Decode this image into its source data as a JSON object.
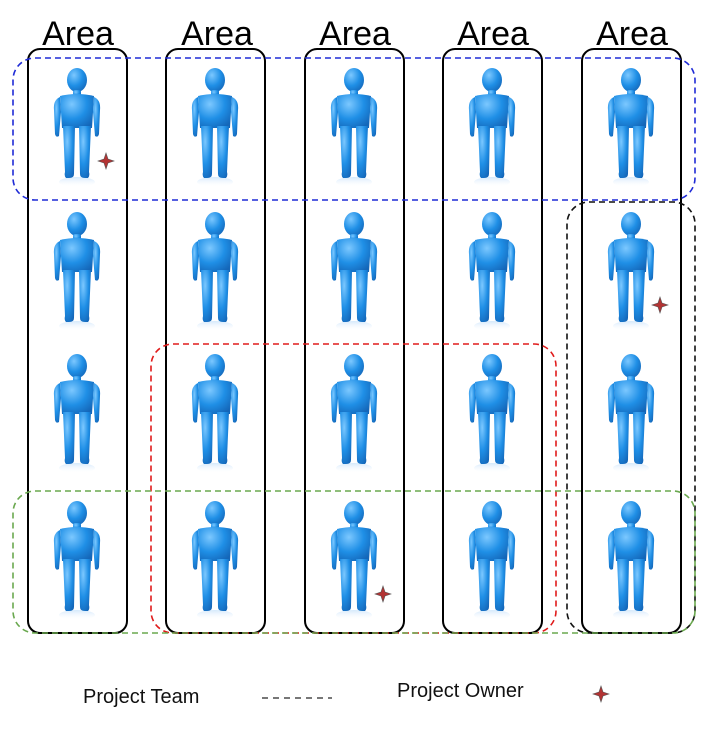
{
  "areas": {
    "header": "Area",
    "count": 5
  },
  "people": {
    "rows": 4,
    "cols": 5,
    "body_color": "#1f8fe6"
  },
  "owners": [
    {
      "row": 1,
      "col": 1
    },
    {
      "row": 2,
      "col": 5
    },
    {
      "row": 4,
      "col": 3
    }
  ],
  "teams": [
    {
      "color": "#1f2bd6",
      "rows": [
        1,
        1
      ],
      "cols": [
        1,
        5
      ]
    },
    {
      "color": "#111111",
      "rows": [
        2,
        4
      ],
      "cols": [
        5,
        5
      ]
    },
    {
      "color": "#e01b1b",
      "rows": [
        3,
        4
      ],
      "cols": [
        2,
        4
      ]
    },
    {
      "color": "#6aa84f",
      "rows": [
        4,
        4
      ],
      "cols": [
        1,
        5
      ]
    }
  ],
  "legend": {
    "team_label": "Project Team",
    "owner_label": "Project Owner",
    "team_line_color": "#777777",
    "owner_marker_color": "#b33333"
  }
}
